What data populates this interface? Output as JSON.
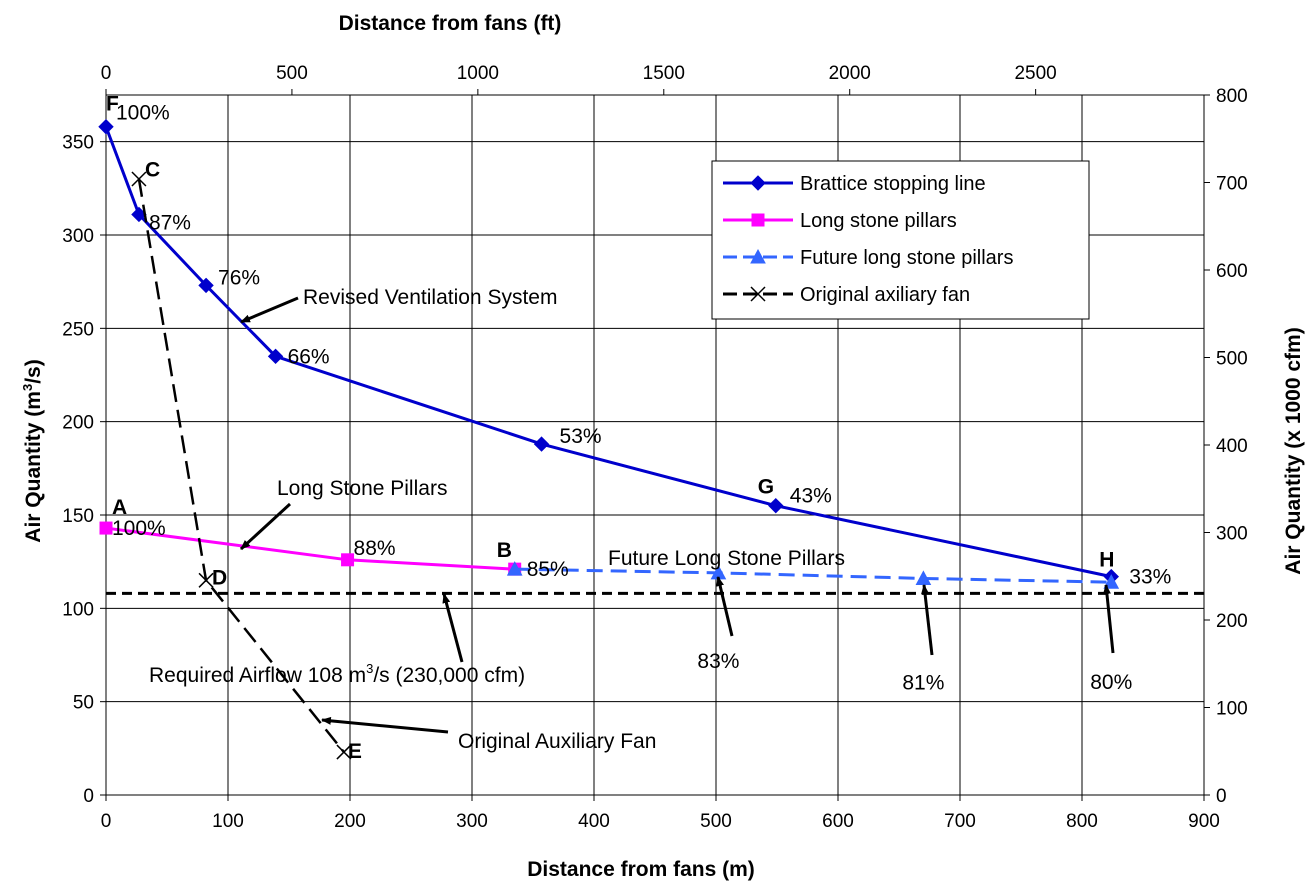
{
  "chart_data": {
    "type": "line",
    "axes": {
      "x_bottom": {
        "label": "Distance from fans (m)",
        "range": [
          0,
          900
        ],
        "ticks": [
          0,
          100,
          200,
          300,
          400,
          500,
          600,
          700,
          800,
          900
        ]
      },
      "x_top": {
        "label": "Distance from fans (ft)",
        "range": [
          0,
          2952.76
        ],
        "ticks": [
          0,
          500,
          1000,
          1500,
          2000,
          2500
        ]
      },
      "y_left": {
        "label_main": "Air Quantity (m",
        "label_sup": "3",
        "label_end": "/s)",
        "range": [
          0,
          375
        ],
        "ticks": [
          0,
          50,
          100,
          150,
          200,
          250,
          300,
          350
        ]
      },
      "y_right": {
        "label": "Air Quantity (x 1000 cfm)",
        "range": [
          0,
          800
        ],
        "ticks": [
          0,
          100,
          200,
          300,
          400,
          500,
          600,
          700,
          800
        ]
      },
      "grid": true
    },
    "series": [
      {
        "name": "Brattice stopping line",
        "color": "#0000CC",
        "dash": "solid",
        "marker": "diamond",
        "points": [
          [
            0,
            358
          ],
          [
            27,
            311
          ],
          [
            82,
            273
          ],
          [
            139,
            235
          ],
          [
            357,
            188
          ],
          [
            549,
            155
          ],
          [
            824,
            117
          ]
        ],
        "labels": [
          "100%",
          "87%",
          "76%",
          "66%",
          "53%",
          "43%",
          "33%"
        ]
      },
      {
        "name": "Long stone pillars",
        "color": "#FF00FF",
        "dash": "solid",
        "marker": "square",
        "points": [
          [
            0,
            143
          ],
          [
            198,
            126
          ],
          [
            335,
            121
          ]
        ],
        "labels": [
          "100%",
          "88%",
          "85%"
        ]
      },
      {
        "name": "Future long stone pillars",
        "color": "#3366FF",
        "dash": "dashed",
        "marker": "triangle",
        "points": [
          [
            335,
            121
          ],
          [
            502,
            119
          ],
          [
            670,
            116
          ],
          [
            824,
            114
          ]
        ],
        "labels": [
          "",
          "83%",
          "81%",
          "80%"
        ]
      },
      {
        "name": "Original axiliary fan",
        "color": "#000000",
        "dash": "dashed",
        "marker": "x",
        "points": [
          [
            27,
            330
          ],
          [
            82,
            115
          ],
          [
            195,
            23
          ]
        ],
        "labels": [
          "",
          "",
          ""
        ]
      }
    ],
    "reference_line": {
      "value": 108,
      "color": "#000000",
      "dash": "dashed"
    },
    "point_letters": [
      "F",
      "C",
      "A",
      "B",
      "D",
      "E",
      "G",
      "H"
    ],
    "annotations": {
      "revised": "Revised Ventilation System",
      "long_stone": "Long Stone Pillars",
      "future": "Future Long Stone Pillars",
      "required_pre": "Required Airflow 108 m",
      "required_sup": "3",
      "required_post": "/s (230,000 cfm)",
      "original_fan": "Original Auxiliary Fan"
    },
    "legend": {
      "position": "top-right",
      "entries": [
        "Brattice stopping line",
        "Long stone pillars",
        "Future long stone pillars",
        "Original axiliary fan"
      ]
    }
  }
}
